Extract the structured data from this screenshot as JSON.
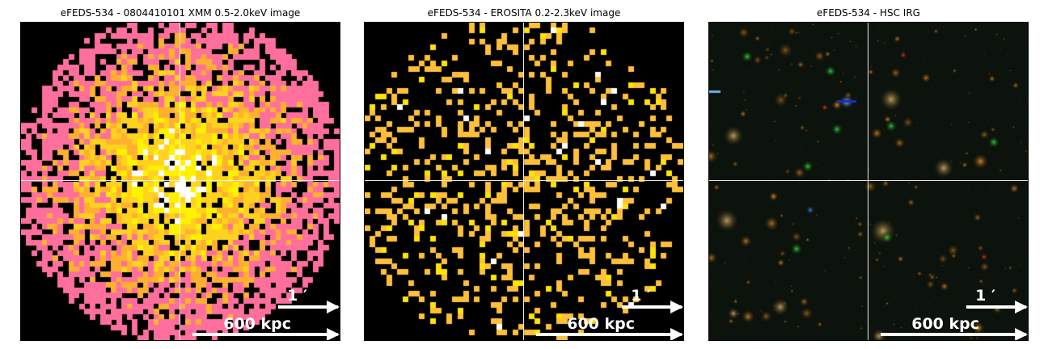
{
  "panels": [
    {
      "id": "xmm",
      "title": "eFEDS-534 - 0804410101 XMM 0.5-2.0keV image",
      "image_kind": "x-ray-pixel-map",
      "colors": [
        "#ff6f9c",
        "#ffb030",
        "#ffd21f",
        "#fff200",
        "#ffffff"
      ],
      "scale_arcmin": "1 ′",
      "scale_kpc": "600 kpc"
    },
    {
      "id": "erosita",
      "title": "eFEDS-534 -  EROSITA 0.2-2.3keV image",
      "image_kind": "x-ray-sparse-counts",
      "colors": [
        "#ffbf3a",
        "#ffe400",
        "#ffffff"
      ],
      "scale_arcmin": "1 ′",
      "scale_kpc": "600 kpc"
    },
    {
      "id": "hsc",
      "title": "eFEDS-534 - HSC IRG",
      "image_kind": "optical-color-composite",
      "colors": [
        "#0c120c",
        "#d48a2a",
        "#3ddb3d",
        "#ff3b2a",
        "#e8c070"
      ],
      "scale_arcmin": "1 ′",
      "scale_kpc": "600 kpc"
    }
  ],
  "crosshair_color": "#ffffff",
  "scale_bar_color": "#ffffff"
}
